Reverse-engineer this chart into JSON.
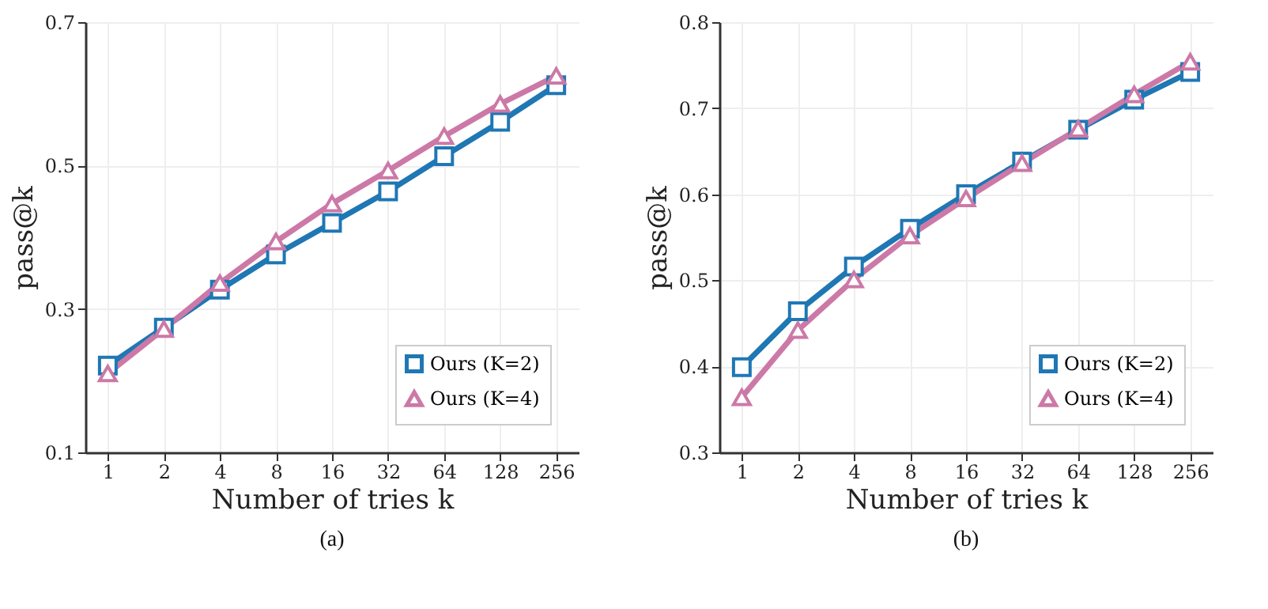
{
  "chart_data": [
    {
      "type": "line",
      "title": "(a)",
      "xlabel": "Number of tries k",
      "ylabel": "pass@k",
      "categories": [
        "1",
        "2",
        "4",
        "8",
        "16",
        "32",
        "64",
        "128",
        "256"
      ],
      "series": [
        {
          "name": "Ours (K=2)",
          "color": "#1f77b4",
          "marker": "square",
          "values": [
            0.221,
            0.274,
            0.327,
            0.376,
            0.42,
            0.464,
            0.513,
            0.561,
            0.612
          ]
        },
        {
          "name": "Ours (K=4)",
          "color": "#cc79a7",
          "marker": "triangle",
          "values": [
            0.21,
            0.272,
            0.336,
            0.394,
            0.447,
            0.493,
            0.541,
            0.586,
            0.625
          ]
        }
      ],
      "ylim": [
        0.1,
        0.7
      ],
      "yticks": [
        0.1,
        0.3,
        0.5,
        0.7
      ],
      "grid": true,
      "legend": "bottom right",
      "line_style": "solid"
    },
    {
      "type": "line",
      "title": "(b)",
      "xlabel": "Number of tries k",
      "ylabel": "pass@k",
      "categories": [
        "1",
        "2",
        "4",
        "8",
        "16",
        "32",
        "64",
        "128",
        "256"
      ],
      "series": [
        {
          "name": "Ours (K=2)",
          "color": "#1f77b4",
          "marker": "square",
          "values": [
            0.399,
            0.464,
            0.516,
            0.56,
            0.6,
            0.638,
            0.675,
            0.71,
            0.742
          ]
        },
        {
          "name": "Ours (K=4)",
          "color": "#cc79a7",
          "marker": "triangle",
          "values": [
            0.364,
            0.442,
            0.501,
            0.552,
            0.595,
            0.636,
            0.676,
            0.716,
            0.754
          ]
        }
      ],
      "ylim": [
        0.3,
        0.8
      ],
      "yticks": [
        0.3,
        0.4,
        0.5,
        0.6,
        0.7,
        0.8
      ],
      "grid": true,
      "legend": "bottom right",
      "line_style": "solid"
    }
  ]
}
